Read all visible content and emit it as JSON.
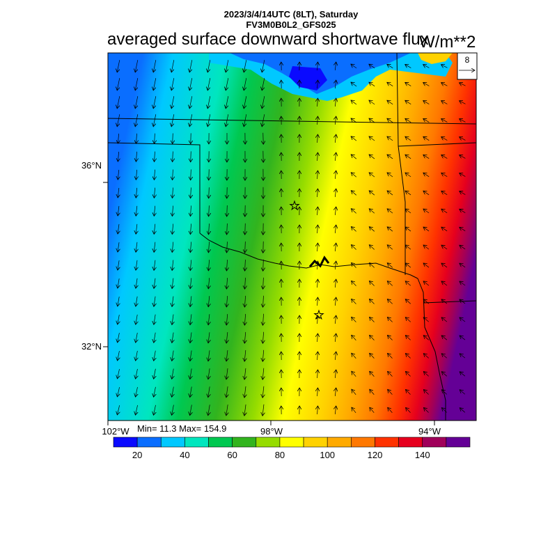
{
  "header": {
    "datetime_line": "2023/3/4/14UTC (8LT), Saturday",
    "model_line": "FV3M0B0L2_GFS025",
    "title": "averaged surface downward shortwave flux",
    "units": "W/m**2"
  },
  "map": {
    "lon_labels": [
      "102°W",
      "98°W",
      "94°W"
    ],
    "lat_labels": [
      "36°N",
      "32°N"
    ],
    "vector_reference": "8",
    "stats": "Min= 11.3 Max= 154.9"
  },
  "colorbar": {
    "colors": [
      "#0a0aff",
      "#0a6eff",
      "#00c8ff",
      "#00e6be",
      "#00c850",
      "#32b41e",
      "#96dc00",
      "#ffff00",
      "#ffd200",
      "#ffaa00",
      "#ff7800",
      "#ff3200",
      "#e6001e",
      "#a0005a",
      "#640096"
    ],
    "labels": [
      "20",
      "40",
      "60",
      "80",
      "100",
      "120",
      "140"
    ]
  },
  "chart_data": {
    "type": "heatmap",
    "variable": "averaged surface downward shortwave flux",
    "units": "W/m**2",
    "min": 11.3,
    "max": 154.9,
    "levels": [
      10,
      20,
      30,
      40,
      50,
      60,
      70,
      80,
      90,
      100,
      110,
      120,
      130,
      140,
      150
    ],
    "lon_range": [
      -102.2,
      -93.1
    ],
    "lat_range": [
      30.3,
      38.5
    ],
    "markers": [
      {
        "type": "star",
        "lon": -97.5,
        "lat": 35.5
      },
      {
        "type": "star",
        "lon": -97.0,
        "lat": 32.8
      }
    ]
  }
}
